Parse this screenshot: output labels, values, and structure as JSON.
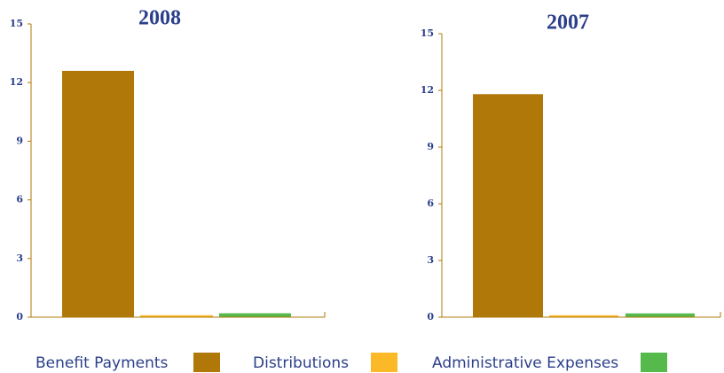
{
  "legend": {
    "items": [
      {
        "name": "Benefit Payments",
        "color": "#b07808"
      },
      {
        "name": "Distributions",
        "color": "#fbb928"
      },
      {
        "name": "Administrative Expenses",
        "color": "#55b94c"
      }
    ]
  },
  "chart_data": [
    {
      "type": "bar",
      "title": "2008",
      "values": [
        12.6,
        0.1,
        0.2
      ],
      "ylim": [
        0,
        15
      ],
      "yticks": [
        0,
        3,
        6,
        9,
        12,
        15
      ]
    },
    {
      "type": "bar",
      "title": "2007",
      "values": [
        11.8,
        0.1,
        0.2
      ],
      "ylim": [
        0,
        15
      ],
      "yticks": [
        0,
        3,
        6,
        9,
        12,
        15
      ]
    }
  ]
}
